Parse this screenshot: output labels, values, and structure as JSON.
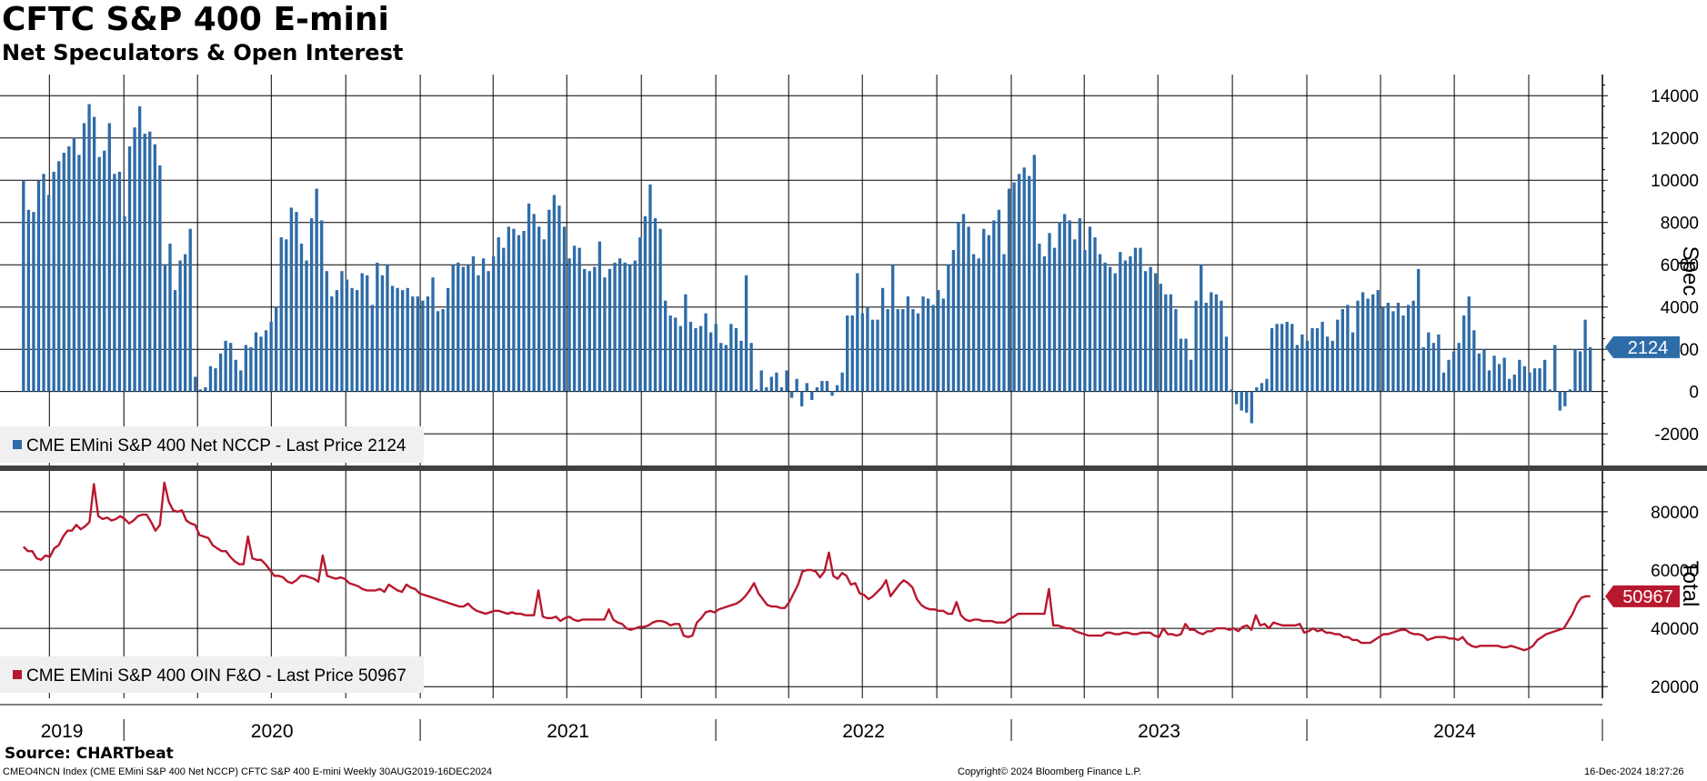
{
  "header": {
    "title": "CFTC S&P 400 E-mini",
    "subtitle": "Net Speculators & Open Interest"
  },
  "chart_data": [
    {
      "type": "bar",
      "panel": "top",
      "ylabel": "Spec",
      "ylim": [
        -3500,
        15000
      ],
      "yticks": [
        14000,
        12000,
        10000,
        8000,
        6000,
        4000,
        2000,
        0,
        -2000
      ],
      "ytick_labels": [
        "14000",
        "12000",
        "10000",
        "8000",
        "6000",
        "4000",
        "2000",
        "0",
        "-2000"
      ],
      "color": "#2e6ca8",
      "last_value_label": "2124",
      "legend": {
        "label": "CME EMini S&P 400 Net NCCP - Last Price 2124",
        "placement": "bottom-left"
      },
      "x_start": "2019-08-30",
      "x_end": "2024-12-16",
      "frequency": "weekly",
      "values": [
        10000,
        8600,
        8500,
        10000,
        10300,
        9300,
        10400,
        10900,
        11300,
        11600,
        12000,
        11200,
        12700,
        13600,
        13000,
        11100,
        11400,
        12700,
        10300,
        10400,
        8300,
        11600,
        12500,
        13500,
        12200,
        12300,
        11700,
        10700,
        6000,
        7000,
        4800,
        6200,
        6500,
        7700,
        700,
        100,
        200,
        1200,
        1100,
        1800,
        2400,
        2300,
        1500,
        1000,
        2200,
        2100,
        2800,
        2600,
        2900,
        3300,
        4000,
        7300,
        7200,
        8700,
        8500,
        7000,
        6200,
        8200,
        9600,
        8100,
        5700,
        4500,
        4800,
        5700,
        5300,
        4900,
        4800,
        5600,
        5500,
        4100,
        6100,
        5500,
        6000,
        5000,
        4900,
        4800,
        4900,
        4500,
        4500,
        4300,
        4500,
        5400,
        3800,
        3900,
        4900,
        6000,
        6100,
        5900,
        6000,
        6400,
        5500,
        6300,
        5700,
        6400,
        7300,
        6800,
        7800,
        7700,
        7400,
        7600,
        8900,
        8400,
        7800,
        7200,
        8600,
        9300,
        8800,
        7800,
        6300,
        6900,
        6800,
        5800,
        5700,
        5900,
        7100,
        5400,
        5800,
        6100,
        6300,
        6100,
        6000,
        6200,
        7300,
        8300,
        9800,
        8200,
        7700,
        4300,
        3600,
        3500,
        3100,
        4600,
        3300,
        3000,
        3100,
        3700,
        2800,
        3200,
        2300,
        2200,
        3200,
        3000,
        2400,
        5500,
        2300,
        100,
        1000,
        200,
        700,
        900,
        200,
        1000,
        -300,
        600,
        -700,
        400,
        -400,
        200,
        500,
        500,
        -200,
        300,
        900,
        3600,
        3600,
        5600,
        3700,
        4000,
        3400,
        3400,
        4900,
        3900,
        6000,
        3900,
        3900,
        4500,
        3900,
        3700,
        4500,
        4400,
        4100,
        4800,
        4400,
        6000,
        6700,
        8000,
        8400,
        7800,
        6500,
        6300,
        7700,
        7400,
        8100,
        8600,
        6500,
        9600,
        9900,
        10300,
        10600,
        10200,
        11200,
        7000,
        6400,
        7500,
        6800,
        8000,
        8400,
        8100,
        7200,
        8200,
        6700,
        7800,
        7300,
        6500,
        6100,
        5900,
        5600,
        6600,
        6200,
        6400,
        6800,
        6800,
        5700,
        5900,
        5600,
        5100,
        4600,
        4600,
        3900,
        2500,
        2500,
        1500,
        4300,
        6000,
        4200,
        4700,
        4600,
        4300,
        2600,
        100,
        -600,
        -900,
        -1000,
        -1500,
        200,
        400,
        600,
        3000,
        3200,
        3200,
        3300,
        3200,
        2200,
        2700,
        2400,
        3000,
        3000,
        3300,
        2600,
        2400,
        3400,
        3900,
        4100,
        2800,
        4300,
        4700,
        4400,
        4600,
        4800,
        4000,
        4200,
        3800,
        4200,
        3600,
        4100,
        4300,
        5800,
        2100,
        2800,
        2300,
        2700,
        900,
        1500,
        1900,
        2300,
        3600,
        4500,
        2900,
        1800,
        2000,
        1000,
        1700,
        1300,
        1600,
        600,
        800,
        1500,
        1200,
        900,
        1100,
        1100,
        1500,
        100,
        2200,
        -900,
        -700,
        100,
        2000,
        1900,
        3400,
        2100
      ]
    },
    {
      "type": "line",
      "panel": "bottom",
      "ylabel": "Total",
      "ylim": [
        16000,
        94000
      ],
      "yticks": [
        80000,
        60000,
        40000,
        20000
      ],
      "ytick_labels": [
        "80000",
        "60000",
        "40000",
        "20000"
      ],
      "color": "#b8182e",
      "last_value_label": "50967",
      "legend": {
        "label": "CME EMini S&P 400 OIN F&O - Last Price 50967",
        "placement": "bottom-left"
      },
      "x_start": "2019-08-30",
      "x_end": "2024-12-16",
      "frequency": "weekly",
      "values": [
        68000,
        66500,
        66500,
        64000,
        63500,
        65000,
        64500,
        67500,
        68500,
        71500,
        73500,
        73500,
        75500,
        74000,
        75000,
        76500,
        89500,
        78500,
        77500,
        78000,
        77000,
        77500,
        78500,
        77500,
        76000,
        77000,
        78500,
        79000,
        79000,
        76500,
        73500,
        75500,
        90000,
        83500,
        80500,
        80000,
        80500,
        77000,
        76000,
        75500,
        72000,
        71500,
        71000,
        68500,
        67500,
        66500,
        66500,
        64500,
        63000,
        62000,
        62000,
        71500,
        64000,
        63500,
        63500,
        62000,
        60000,
        58000,
        58000,
        57500,
        56000,
        55500,
        56500,
        58000,
        58000,
        57500,
        57000,
        56000,
        65000,
        58000,
        57500,
        57000,
        57500,
        57000,
        55500,
        55000,
        54500,
        53500,
        53000,
        53000,
        53000,
        53500,
        52500,
        55000,
        54000,
        53000,
        52500,
        55000,
        54000,
        53500,
        52000,
        51500,
        51000,
        50500,
        50000,
        49500,
        49000,
        48500,
        48000,
        47500,
        47500,
        48500,
        47000,
        46000,
        45500,
        45000,
        45500,
        46000,
        46000,
        45500,
        45000,
        45500,
        45000,
        45000,
        44500,
        44500,
        44500,
        53000,
        44000,
        43500,
        43500,
        44000,
        42500,
        43500,
        44000,
        43000,
        42500,
        43000,
        43000,
        43000,
        43000,
        43000,
        43000,
        46500,
        43000,
        42000,
        41500,
        40000,
        39500,
        40000,
        40500,
        40500,
        41000,
        42000,
        42500,
        42500,
        42000,
        41000,
        41500,
        41500,
        37500,
        37000,
        37500,
        42000,
        43500,
        45500,
        46000,
        45500,
        46500,
        47000,
        47500,
        48000,
        48500,
        49500,
        51000,
        53000,
        55500,
        52000,
        50000,
        48000,
        47500,
        47500,
        47000,
        47000,
        49000,
        52000,
        55000,
        59500,
        60000,
        60000,
        59500,
        57500,
        59500,
        66000,
        58000,
        57000,
        59000,
        58000,
        55000,
        55500,
        52000,
        51500,
        50000,
        51000,
        52500,
        54000,
        56500,
        51000,
        53000,
        55000,
        56500,
        55500,
        54000,
        50000,
        48000,
        47000,
        46500,
        46500,
        46000,
        46000,
        45000,
        45000,
        49000,
        44500,
        43000,
        42500,
        43000,
        43000,
        42500,
        42500,
        42500,
        42000,
        42000,
        42000,
        43000,
        44000,
        45000,
        45000,
        45000,
        45000,
        45000,
        45000,
        45000,
        53500,
        41000,
        41000,
        40500,
        40000,
        40000,
        39000,
        38500,
        38000,
        37500,
        37500,
        37500,
        37500,
        38500,
        38500,
        38000,
        38000,
        38500,
        38500,
        38000,
        38000,
        38500,
        38500,
        38500,
        37500,
        37000,
        40000,
        38000,
        38000,
        37500,
        38000,
        41500,
        39500,
        39500,
        38500,
        38000,
        39000,
        39000,
        40000,
        40000,
        40000,
        39500,
        40000,
        39000,
        40500,
        41000,
        39500,
        44500,
        41000,
        41500,
        40000,
        42000,
        41500,
        41000,
        41000,
        41000,
        41000,
        41500,
        38500,
        39000,
        40000,
        39000,
        39500,
        38500,
        38500,
        38000,
        38000,
        37000,
        37000,
        36000,
        36000,
        35000,
        35000,
        35000,
        36000,
        37000,
        38000,
        38000,
        38500,
        39000,
        39500,
        39500,
        38500,
        38000,
        38000,
        37500,
        36000,
        36500,
        37000,
        37000,
        37000,
        36500,
        36500,
        36000,
        37000,
        35000,
        34000,
        33500,
        34000,
        34000,
        34000,
        34000,
        34000,
        33500,
        33500,
        34000,
        33500,
        33000,
        32500,
        33000,
        34000,
        36000,
        37000,
        38000,
        38500,
        39000,
        39500,
        40000,
        42500,
        45000,
        48500,
        50500,
        51000,
        51000
      ]
    }
  ],
  "x_axis": {
    "year_labels": [
      "2019",
      "2020",
      "2021",
      "2022",
      "2023",
      "2024"
    ]
  },
  "footer": {
    "source": "Source: CHARTbeat",
    "ticker_info": "CMEO4NCN Index (CME EMini S&P 400 Net NCCP) CFTC S&P 400 E-mini  Weekly 30AUG2019-16DEC2024",
    "copyright": "Copyright© 2024 Bloomberg Finance L.P.",
    "timestamp": "16-Dec-2024 18:27:26"
  }
}
